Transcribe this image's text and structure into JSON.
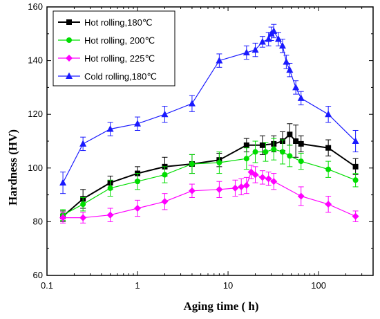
{
  "chart_data": {
    "type": "line",
    "xlabel": "Aging time ( h)",
    "ylabel": "Hardness (HV)",
    "xscale": "log",
    "xlim": [
      0.1,
      400
    ],
    "ylim": [
      60,
      160
    ],
    "x_ticks": [
      0.1,
      1,
      10,
      100
    ],
    "x_tick_labels": [
      "0.1",
      "1",
      "10",
      "100"
    ],
    "y_ticks": [
      60,
      80,
      100,
      120,
      140,
      160
    ],
    "y_tick_labels": [
      "60",
      "80",
      "100",
      "120",
      "140",
      "160"
    ],
    "legend_position": "top-left",
    "grid": false,
    "series": [
      {
        "name": "Hot rolling,180℃",
        "color": "#000000",
        "marker": "square",
        "x": [
          0.15,
          0.25,
          0.5,
          1,
          2,
          4,
          8,
          16,
          24,
          32,
          40,
          48,
          56,
          64,
          128,
          256
        ],
        "y": [
          82,
          88.5,
          94.5,
          98,
          100.5,
          101.5,
          103,
          108.5,
          108.5,
          109,
          110,
          112.5,
          110,
          109,
          107.5,
          100.5
        ],
        "err": [
          2,
          3.5,
          2.5,
          2.5,
          3.5,
          3.5,
          2.5,
          2.5,
          3.5,
          3,
          3.5,
          4,
          6,
          3,
          3,
          3
        ]
      },
      {
        "name": "Hot rolling, 200℃",
        "color": "#00dd00",
        "marker": "circle",
        "x": [
          0.15,
          0.25,
          0.5,
          1,
          2,
          4,
          8,
          16,
          20,
          26,
          32,
          40,
          48,
          64,
          128,
          256
        ],
        "y": [
          82.5,
          86.5,
          92.5,
          95,
          97.5,
          101.5,
          102,
          103.5,
          106,
          106,
          107,
          106,
          104.5,
          102.5,
          99.5,
          95.5
        ],
        "err": [
          2,
          2.5,
          3,
          3,
          3,
          3.5,
          4,
          4,
          4,
          3.5,
          4,
          4.5,
          4,
          3,
          3,
          2.5
        ]
      },
      {
        "name": "Hot rolling, 225℃",
        "color": "#ff00ff",
        "marker": "diamond",
        "x": [
          0.15,
          0.25,
          0.5,
          1,
          2,
          4,
          8,
          12,
          14,
          16,
          18,
          20,
          24,
          28,
          32,
          64,
          128,
          256
        ],
        "y": [
          81.5,
          81.5,
          82.5,
          85,
          87.5,
          91.5,
          92,
          92.5,
          93,
          93.5,
          98.5,
          97.5,
          96.5,
          96,
          95,
          89.5,
          86.5,
          82
        ],
        "err": [
          2,
          2,
          2.5,
          3,
          3,
          2.5,
          3,
          3,
          3,
          3,
          2.5,
          3,
          2.5,
          2.5,
          3,
          3.5,
          3,
          2
        ]
      },
      {
        "name": "Cold rolling,180℃",
        "color": "#1a1aff",
        "marker": "triangle",
        "x": [
          0.15,
          0.25,
          0.5,
          1,
          2,
          4,
          8,
          16,
          20,
          24,
          28,
          30,
          32,
          36,
          40,
          44,
          48,
          56,
          64,
          128,
          256
        ],
        "y": [
          94.5,
          109,
          114.5,
          116.5,
          120,
          124,
          140,
          143,
          144,
          147,
          148,
          150,
          151,
          148,
          145.5,
          139.5,
          136.5,
          130,
          126,
          120,
          110
        ],
        "err": [
          4,
          2.5,
          2.5,
          2.5,
          3,
          3,
          2.5,
          2.5,
          2.5,
          2,
          2.5,
          2.5,
          2.5,
          2.5,
          2.5,
          2.5,
          2.5,
          2.5,
          2.5,
          3,
          4
        ]
      }
    ]
  }
}
